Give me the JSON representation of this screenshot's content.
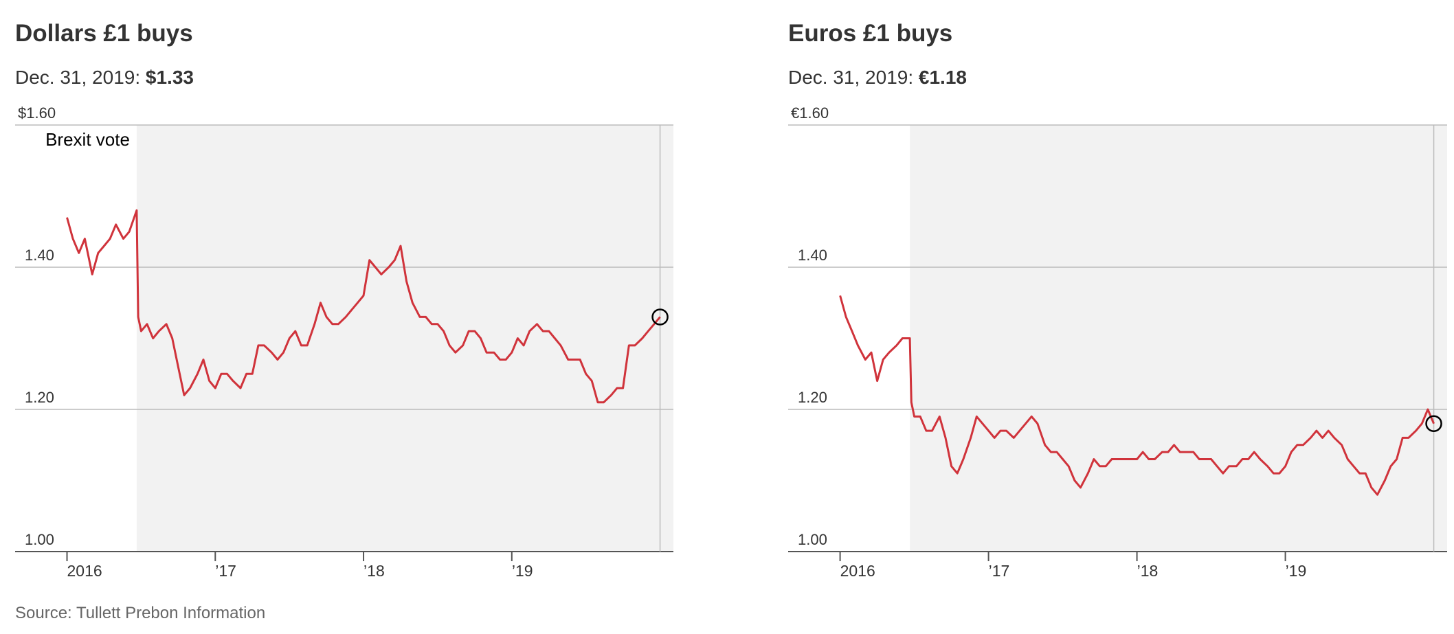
{
  "chart_data": [
    {
      "type": "line",
      "title": "Dollars £1 buys",
      "subtitle": "Dec. 31, 2019:",
      "latest": {
        "value": 1.33,
        "label": "$1.33"
      },
      "annotation": {
        "text": "Brexit vote",
        "x": 2016.47
      },
      "color": "#d0333b",
      "xlim": [
        2015.65,
        2020.09
      ],
      "xticks": [
        {
          "value": 2016,
          "label": "2016"
        },
        {
          "value": 2017,
          "label": "’17"
        },
        {
          "value": 2018,
          "label": "’18"
        },
        {
          "value": 2019,
          "label": "’19"
        }
      ],
      "ylim": [
        1.0,
        1.6
      ],
      "yticks": [
        {
          "value": 1.0,
          "label": "1.00"
        },
        {
          "value": 1.2,
          "label": "1.20"
        },
        {
          "value": 1.4,
          "label": "1.40"
        },
        {
          "value": 1.6,
          "label": "$1.60"
        }
      ],
      "grid": true,
      "x": [
        2016.0,
        2016.04,
        2016.08,
        2016.12,
        2016.17,
        2016.21,
        2016.25,
        2016.29,
        2016.33,
        2016.38,
        2016.42,
        2016.47,
        2016.48,
        2016.5,
        2016.54,
        2016.58,
        2016.62,
        2016.67,
        2016.71,
        2016.75,
        2016.79,
        2016.83,
        2016.88,
        2016.92,
        2016.96,
        2017.0,
        2017.04,
        2017.08,
        2017.12,
        2017.17,
        2017.21,
        2017.25,
        2017.29,
        2017.33,
        2017.38,
        2017.42,
        2017.46,
        2017.5,
        2017.54,
        2017.58,
        2017.62,
        2017.67,
        2017.71,
        2017.75,
        2017.79,
        2017.83,
        2017.88,
        2017.92,
        2017.96,
        2018.0,
        2018.04,
        2018.08,
        2018.12,
        2018.17,
        2018.21,
        2018.25,
        2018.29,
        2018.33,
        2018.38,
        2018.42,
        2018.46,
        2018.5,
        2018.54,
        2018.58,
        2018.62,
        2018.67,
        2018.71,
        2018.75,
        2018.79,
        2018.83,
        2018.88,
        2018.92,
        2018.96,
        2019.0,
        2019.04,
        2019.08,
        2019.12,
        2019.17,
        2019.21,
        2019.25,
        2019.29,
        2019.33,
        2019.38,
        2019.42,
        2019.46,
        2019.5,
        2019.54,
        2019.58,
        2019.62,
        2019.67,
        2019.71,
        2019.75,
        2019.79,
        2019.83,
        2019.88,
        2019.92,
        2019.96,
        2020.0
      ],
      "values": [
        1.47,
        1.44,
        1.42,
        1.44,
        1.39,
        1.42,
        1.43,
        1.44,
        1.46,
        1.44,
        1.45,
        1.48,
        1.33,
        1.31,
        1.32,
        1.3,
        1.31,
        1.32,
        1.3,
        1.26,
        1.22,
        1.23,
        1.25,
        1.27,
        1.24,
        1.23,
        1.25,
        1.25,
        1.24,
        1.23,
        1.25,
        1.25,
        1.29,
        1.29,
        1.28,
        1.27,
        1.28,
        1.3,
        1.31,
        1.29,
        1.29,
        1.32,
        1.35,
        1.33,
        1.32,
        1.32,
        1.33,
        1.34,
        1.35,
        1.36,
        1.41,
        1.4,
        1.39,
        1.4,
        1.41,
        1.43,
        1.38,
        1.35,
        1.33,
        1.33,
        1.32,
        1.32,
        1.31,
        1.29,
        1.28,
        1.29,
        1.31,
        1.31,
        1.3,
        1.28,
        1.28,
        1.27,
        1.27,
        1.28,
        1.3,
        1.29,
        1.31,
        1.32,
        1.31,
        1.31,
        1.3,
        1.29,
        1.27,
        1.27,
        1.27,
        1.25,
        1.24,
        1.21,
        1.21,
        1.22,
        1.23,
        1.23,
        1.29,
        1.29,
        1.3,
        1.31,
        1.32,
        1.33
      ]
    },
    {
      "type": "line",
      "title": "Euros £1 buys",
      "subtitle": "Dec. 31, 2019:",
      "latest": {
        "value": 1.18,
        "label": "€1.18"
      },
      "annotation": {
        "x": 2016.47
      },
      "color": "#d0333b",
      "xlim": [
        2015.65,
        2020.09
      ],
      "xticks": [
        {
          "value": 2016,
          "label": "2016"
        },
        {
          "value": 2017,
          "label": "’17"
        },
        {
          "value": 2018,
          "label": "’18"
        },
        {
          "value": 2019,
          "label": "’19"
        }
      ],
      "ylim": [
        1.0,
        1.6
      ],
      "yticks": [
        {
          "value": 1.0,
          "label": "1.00"
        },
        {
          "value": 1.2,
          "label": "1.20"
        },
        {
          "value": 1.4,
          "label": "1.40"
        },
        {
          "value": 1.6,
          "label": "€1.60"
        }
      ],
      "grid": true,
      "x": [
        2016.0,
        2016.04,
        2016.08,
        2016.12,
        2016.17,
        2016.21,
        2016.25,
        2016.29,
        2016.33,
        2016.38,
        2016.42,
        2016.47,
        2016.48,
        2016.5,
        2016.54,
        2016.58,
        2016.62,
        2016.67,
        2016.71,
        2016.75,
        2016.79,
        2016.83,
        2016.88,
        2016.92,
        2016.96,
        2017.0,
        2017.04,
        2017.08,
        2017.12,
        2017.17,
        2017.21,
        2017.25,
        2017.29,
        2017.33,
        2017.38,
        2017.42,
        2017.46,
        2017.5,
        2017.54,
        2017.58,
        2017.62,
        2017.67,
        2017.71,
        2017.75,
        2017.79,
        2017.83,
        2017.88,
        2017.92,
        2017.96,
        2018.0,
        2018.04,
        2018.08,
        2018.12,
        2018.17,
        2018.21,
        2018.25,
        2018.29,
        2018.33,
        2018.38,
        2018.42,
        2018.46,
        2018.5,
        2018.54,
        2018.58,
        2018.62,
        2018.67,
        2018.71,
        2018.75,
        2018.79,
        2018.83,
        2018.88,
        2018.92,
        2018.96,
        2019.0,
        2019.04,
        2019.08,
        2019.12,
        2019.17,
        2019.21,
        2019.25,
        2019.29,
        2019.33,
        2019.38,
        2019.42,
        2019.46,
        2019.5,
        2019.54,
        2019.58,
        2019.62,
        2019.67,
        2019.71,
        2019.75,
        2019.79,
        2019.83,
        2019.88,
        2019.92,
        2019.96,
        2020.0
      ],
      "values": [
        1.36,
        1.33,
        1.31,
        1.29,
        1.27,
        1.28,
        1.24,
        1.27,
        1.28,
        1.29,
        1.3,
        1.3,
        1.21,
        1.19,
        1.19,
        1.17,
        1.17,
        1.19,
        1.16,
        1.12,
        1.11,
        1.13,
        1.16,
        1.19,
        1.18,
        1.17,
        1.16,
        1.17,
        1.17,
        1.16,
        1.17,
        1.18,
        1.19,
        1.18,
        1.15,
        1.14,
        1.14,
        1.13,
        1.12,
        1.1,
        1.09,
        1.11,
        1.13,
        1.12,
        1.12,
        1.13,
        1.13,
        1.13,
        1.13,
        1.13,
        1.14,
        1.13,
        1.13,
        1.14,
        1.14,
        1.15,
        1.14,
        1.14,
        1.14,
        1.13,
        1.13,
        1.13,
        1.12,
        1.11,
        1.12,
        1.12,
        1.13,
        1.13,
        1.14,
        1.13,
        1.12,
        1.11,
        1.11,
        1.12,
        1.14,
        1.15,
        1.15,
        1.16,
        1.17,
        1.16,
        1.17,
        1.16,
        1.15,
        1.13,
        1.12,
        1.11,
        1.11,
        1.09,
        1.08,
        1.1,
        1.12,
        1.13,
        1.16,
        1.16,
        1.17,
        1.18,
        1.2,
        1.18
      ]
    }
  ],
  "source": "Source: Tullett Prebon Information"
}
